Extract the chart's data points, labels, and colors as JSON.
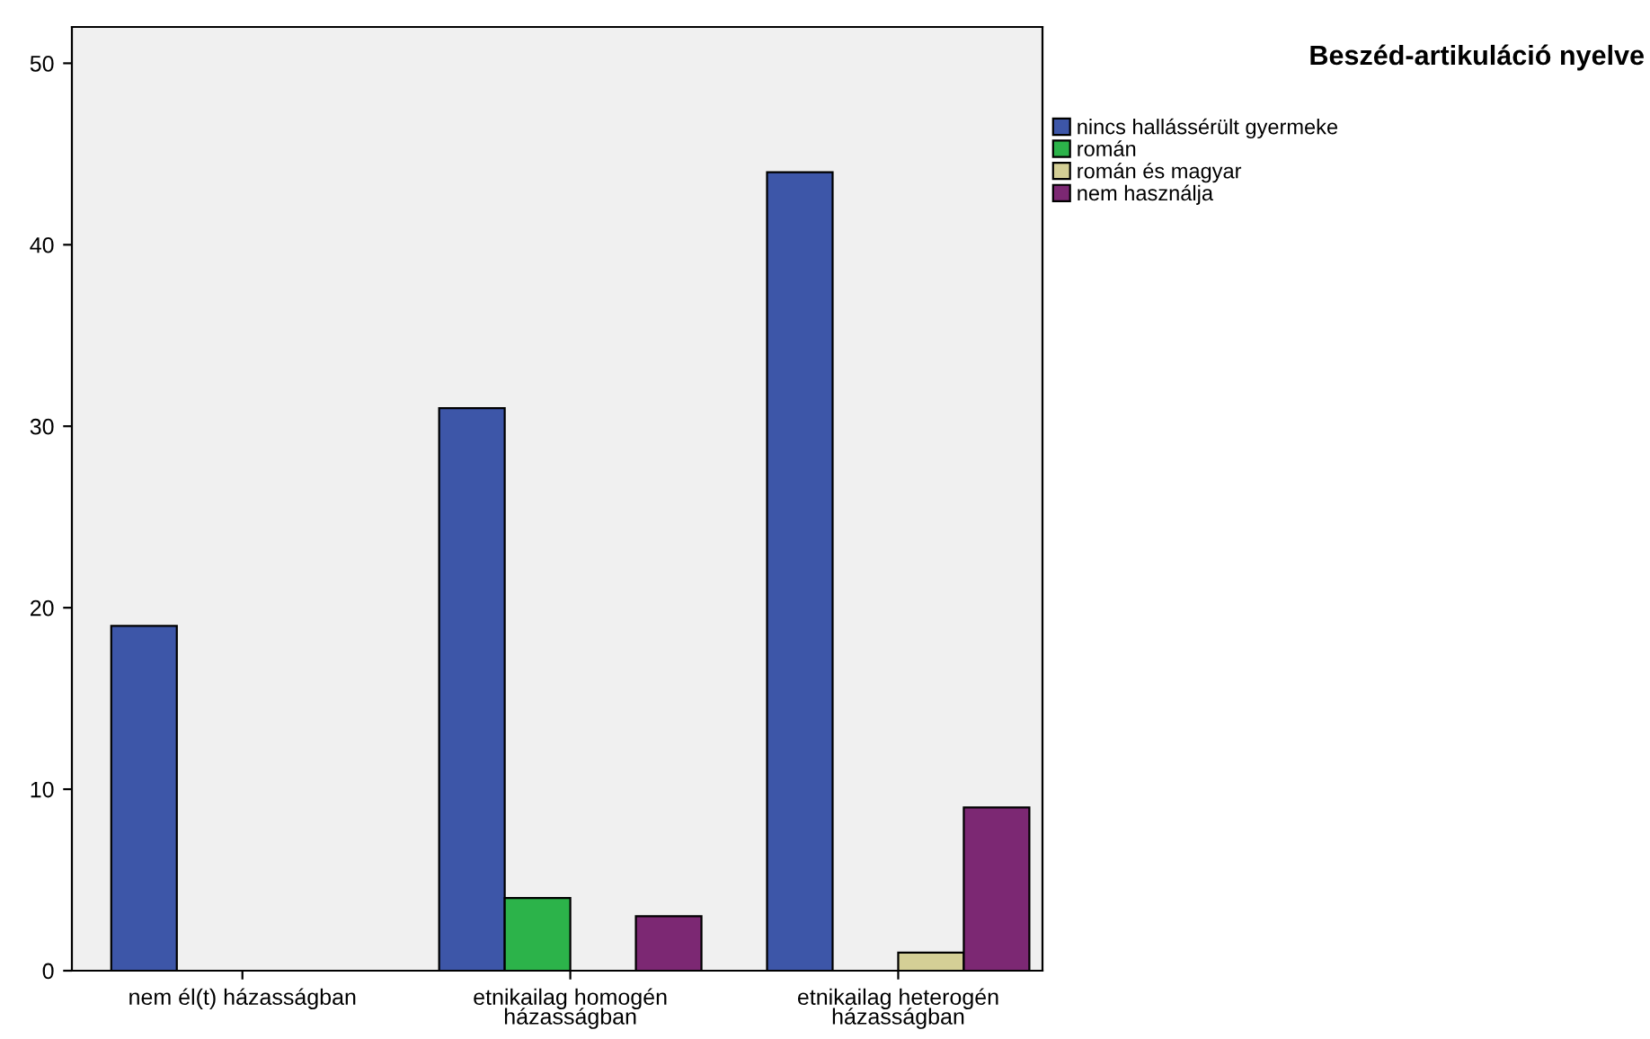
{
  "chart_data": {
    "type": "bar",
    "legend_title": "Beszéd-artikuláció nyelve",
    "categories": [
      "nem él(t) házasságban",
      "etnikailag homogén\nházasságban",
      "etnikailag heterogén\nházasságban"
    ],
    "series": [
      {
        "name": "nincs hallássérült gyermeke",
        "color": "#3d56a8",
        "values": [
          19,
          31,
          44
        ]
      },
      {
        "name": "román",
        "color": "#2cb34a",
        "values": [
          null,
          4,
          null
        ]
      },
      {
        "name": "román és magyar",
        "color": "#d4cf96",
        "values": [
          null,
          null,
          1
        ]
      },
      {
        "name": "nem használja",
        "color": "#7c2873",
        "values": [
          null,
          3,
          9
        ]
      }
    ],
    "ylim": [
      0,
      52
    ],
    "yticks": [
      0,
      10,
      20,
      30,
      40,
      50
    ],
    "grid": false,
    "legend": "top right"
  }
}
